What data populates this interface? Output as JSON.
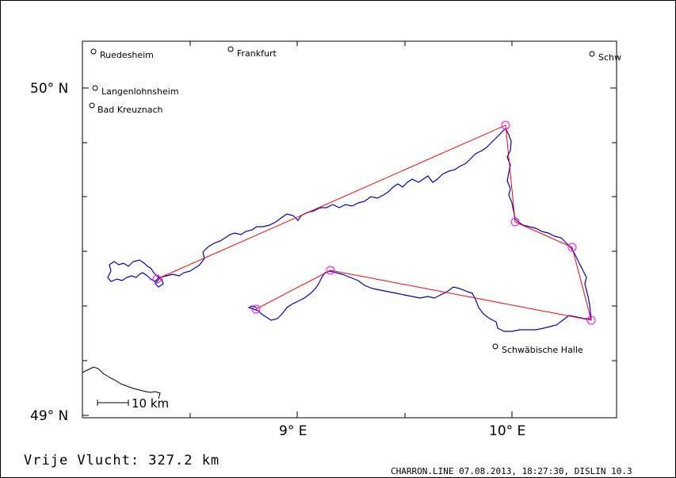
{
  "map": {
    "lat_labels": [
      "50° N",
      "49° N"
    ],
    "lon_labels": [
      "9° E",
      "10° E"
    ],
    "scale_label": "10 km",
    "towns": [
      {
        "name": "Ruedesheim"
      },
      {
        "name": "Frankfurt"
      },
      {
        "name": "Schw"
      },
      {
        "name": "Langenlohnsheim"
      },
      {
        "name": "Bad Kreuznach"
      },
      {
        "name": "Schwäbische Halle"
      }
    ],
    "colors": {
      "track": "#0000cc",
      "task_line": "#ff0000",
      "turnpoint": "#ff00ff",
      "border": "#000000"
    }
  },
  "footer": {
    "distance_label": "Vrije Vlucht:  327.2 km",
    "info": "CHARRON.LINE 07.08.2013, 18:27:30, DISLIN 10.3"
  }
}
